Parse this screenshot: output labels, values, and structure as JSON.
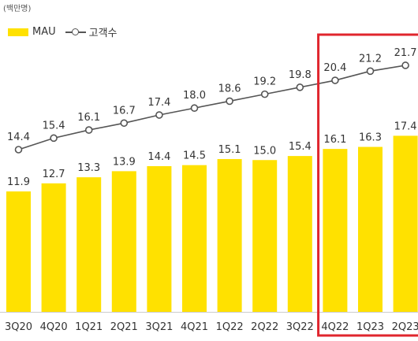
{
  "chart_data": {
    "type": "bar",
    "unit_label": "(백만명)",
    "categories": [
      "3Q20",
      "4Q20",
      "1Q21",
      "2Q21",
      "3Q21",
      "4Q21",
      "1Q22",
      "2Q22",
      "3Q22",
      "4Q22",
      "1Q23",
      "2Q23"
    ],
    "series": [
      {
        "name": "MAU",
        "type": "bar",
        "values": [
          11.9,
          12.7,
          13.3,
          13.9,
          14.4,
          14.5,
          15.1,
          15.0,
          15.4,
          16.1,
          16.3,
          17.4
        ],
        "color": "#FFE100"
      },
      {
        "name": "고객수",
        "type": "line",
        "values": [
          14.4,
          15.4,
          16.1,
          16.7,
          17.4,
          18.0,
          18.6,
          19.2,
          19.8,
          20.4,
          21.2,
          21.7
        ],
        "color": "#555555"
      }
    ],
    "bar_value_labels": [
      "11.9",
      "12.7",
      "13.3",
      "13.9",
      "14.4",
      "14.5",
      "15.1",
      "15.0",
      "15.4",
      "16.1",
      "16.3",
      "17.4"
    ],
    "line_value_labels": [
      "14.4",
      "15.4",
      "16.1",
      "16.7",
      "17.4",
      "18.0",
      "18.6",
      "19.2",
      "19.8",
      "20.4",
      "21.2",
      "21.7"
    ],
    "legend": {
      "position": "top-left",
      "bar_label": "MAU",
      "line_label": "고객수"
    },
    "highlight": {
      "categories": [
        "4Q22",
        "1Q23",
        "2Q23"
      ],
      "color": "#E0252D"
    },
    "grid": false
  }
}
